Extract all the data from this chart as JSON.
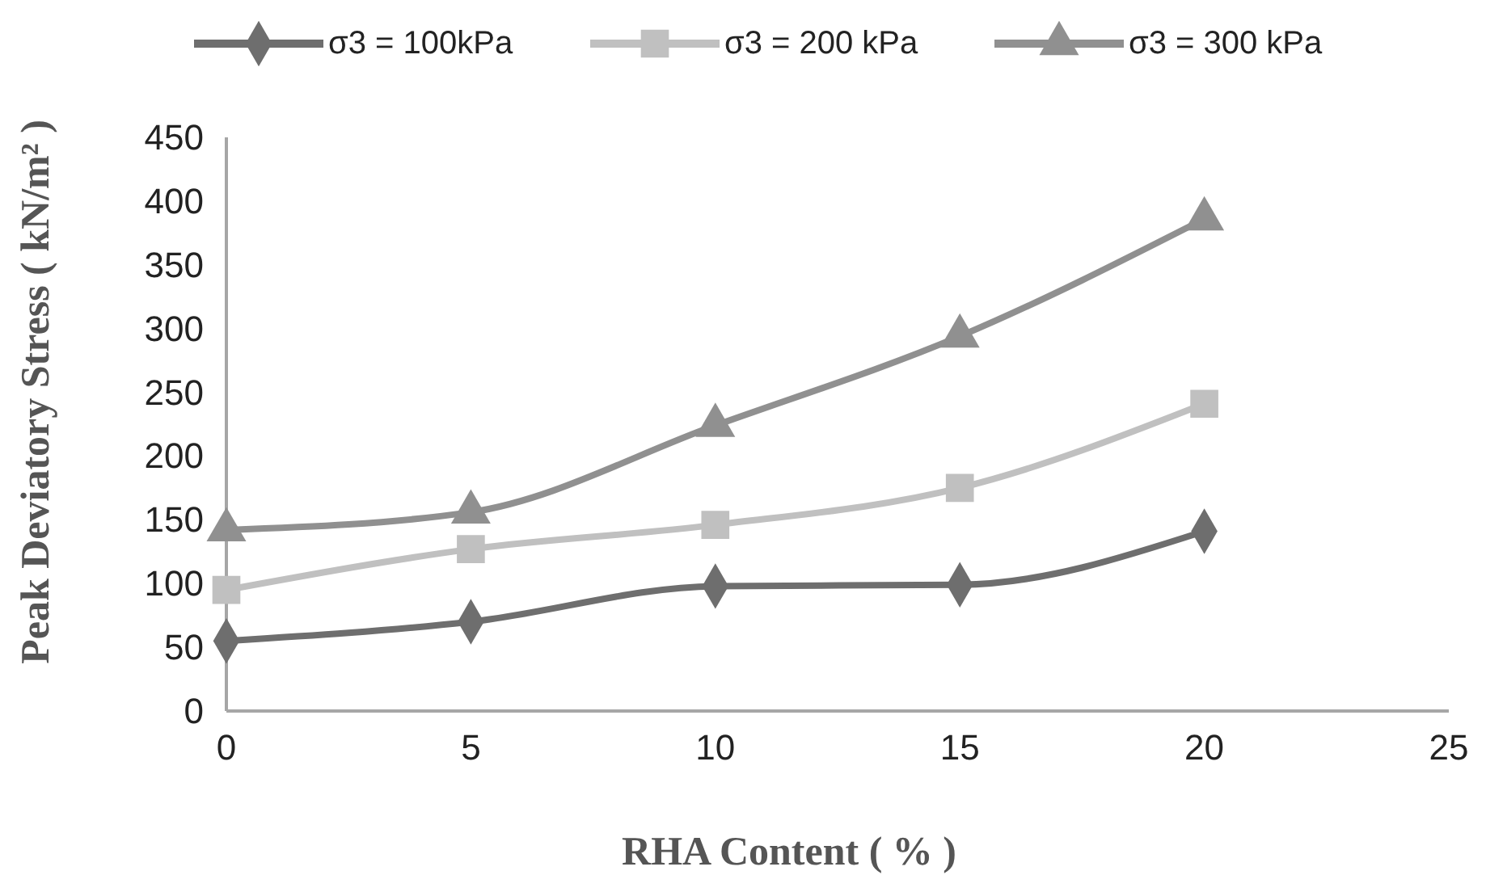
{
  "chart_data": {
    "type": "line",
    "xlabel": "RHA Content ( % )",
    "ylabel": "Peak Deviatory Stress ( kN/m² )",
    "x": [
      0,
      5,
      10,
      15,
      20
    ],
    "xlim": [
      0,
      25
    ],
    "xticks": [
      0,
      5,
      10,
      15,
      20,
      25
    ],
    "ylim": [
      0,
      450
    ],
    "yticks": [
      0,
      50,
      100,
      150,
      200,
      250,
      300,
      350,
      400,
      450
    ],
    "grid": false,
    "legend": "top",
    "series": [
      {
        "name": "σ3 = 100kPa",
        "color": "#6e6e6e",
        "marker": "diamond",
        "values": [
          55,
          70,
          98,
          99,
          141
        ]
      },
      {
        "name": "σ3 = 200 kPa",
        "color": "#c0c0c0",
        "marker": "square",
        "values": [
          95,
          127,
          146,
          175,
          241
        ]
      },
      {
        "name": "σ3 = 300 kPa",
        "color": "#909090",
        "marker": "triangle",
        "values": [
          142,
          156,
          224,
          294,
          386
        ]
      }
    ]
  }
}
